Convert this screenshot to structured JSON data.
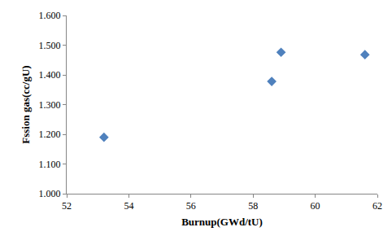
{
  "chart_data": {
    "type": "scatter",
    "x_label": "Burnup(GWd/tU)",
    "y_label": "Fssion gas(cc/gU)",
    "x": [
      53.2,
      58.6,
      58.9,
      61.6
    ],
    "values": [
      1.19,
      1.378,
      1.476,
      1.468
    ],
    "color": "#4f81bd",
    "marker": "diamond",
    "xlim": [
      52,
      62
    ],
    "xticks": [
      52,
      54,
      56,
      58,
      60,
      62
    ],
    "ylim": [
      1.0,
      1.6
    ],
    "yticks": [
      {
        "value": 1.0,
        "label": "1.000"
      },
      {
        "value": 1.1,
        "label": "1.100"
      },
      {
        "value": 1.2,
        "label": "1.200"
      },
      {
        "value": 1.3,
        "label": "1.300"
      },
      {
        "value": 1.4,
        "label": "1.400"
      },
      {
        "value": 1.5,
        "label": "1.500"
      },
      {
        "value": 1.6,
        "label": "1.600"
      }
    ],
    "grid": false
  }
}
